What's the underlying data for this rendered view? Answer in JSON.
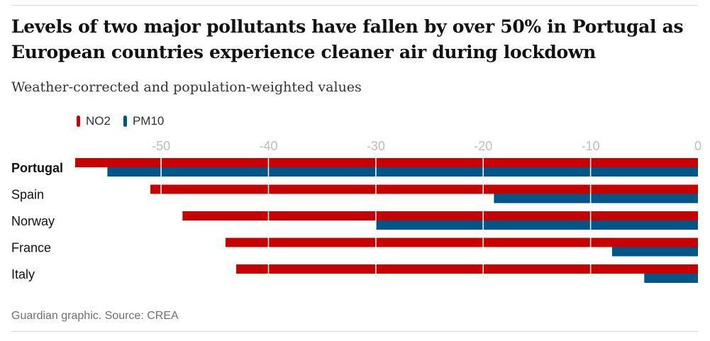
{
  "title": "Levels of two major pollutants have fallen by over 50% in Portugal as European countries experience cleaner air during lockdown",
  "subtitle": "Weather-corrected and population-weighted values",
  "source": "Guardian graphic. Source: CREA",
  "colors": {
    "no2": "#c70000",
    "pm10": "#005689",
    "grid": "#ffffff",
    "tick": "#bdbdbd"
  },
  "chart_data": {
    "type": "bar",
    "orientation": "horizontal",
    "categories": [
      "Portugal",
      "Spain",
      "Norway",
      "France",
      "Italy"
    ],
    "highlight_category": "Portugal",
    "series": [
      {
        "name": "NO2",
        "values": [
          -58,
          -51,
          -48,
          -44,
          -43
        ]
      },
      {
        "name": "PM10",
        "values": [
          -55,
          -19,
          -30,
          -8,
          -5
        ]
      }
    ],
    "xlim": [
      -58,
      0
    ],
    "x_ticks": [
      "-50",
      "-40",
      "-30",
      "-20",
      "-10",
      "0"
    ],
    "x_tick_values": [
      -50,
      -40,
      -30,
      -20,
      -10,
      0
    ],
    "grid": true,
    "legend_position": "top-left"
  }
}
